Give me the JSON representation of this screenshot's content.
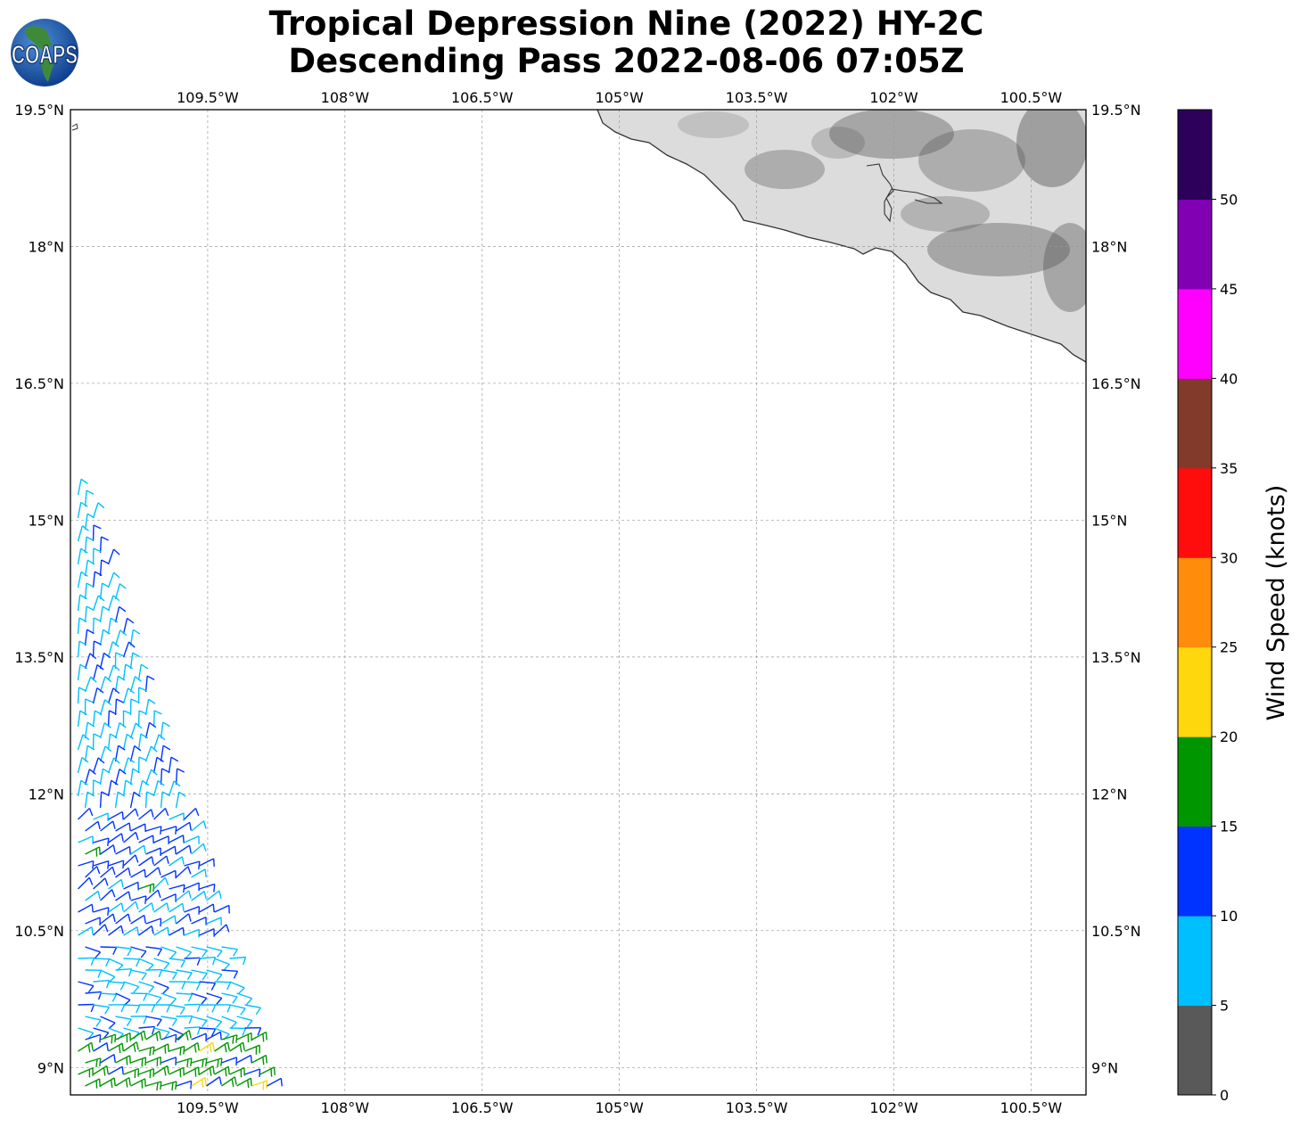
{
  "title": {
    "line1": "Tropical Depression Nine (2022) HY-2C",
    "line2": "Descending Pass 2022-08-06 07:05Z"
  },
  "logo": {
    "text": "COAPS",
    "icon": "globe-logo-icon"
  },
  "map": {
    "lon_range": [
      -111,
      -99.9
    ],
    "lat_range": [
      8.7,
      19.5
    ],
    "grid": true,
    "lon_ticks": [
      {
        "value": -109.5,
        "label": "109.5°W"
      },
      {
        "value": -108,
        "label": "108°W"
      },
      {
        "value": -106.5,
        "label": "106.5°W"
      },
      {
        "value": -105,
        "label": "105°W"
      },
      {
        "value": -103.5,
        "label": "103.5°W"
      },
      {
        "value": -102,
        "label": "102°W"
      },
      {
        "value": -100.5,
        "label": "100.5°W"
      }
    ],
    "lat_ticks": [
      {
        "value": 19.5,
        "label": "19.5°N"
      },
      {
        "value": 18,
        "label": "18°N"
      },
      {
        "value": 16.5,
        "label": "16.5°N"
      },
      {
        "value": 15,
        "label": "15°N"
      },
      {
        "value": 13.5,
        "label": "13.5°N"
      },
      {
        "value": 12,
        "label": "12°N"
      },
      {
        "value": 10.5,
        "label": "10.5°N"
      },
      {
        "value": 9,
        "label": "9°N"
      }
    ],
    "land_color": "#dcdcdc",
    "coastline_color": "#333333"
  },
  "colorbar": {
    "label": "Wind Speed (knots)",
    "ticks": [
      "0",
      "5",
      "10",
      "15",
      "20",
      "25",
      "30",
      "35",
      "40",
      "45",
      "50"
    ],
    "bins": [
      {
        "from": 0,
        "to": 5,
        "color": "#595959"
      },
      {
        "from": 5,
        "to": 10,
        "color": "#00bfff"
      },
      {
        "from": 10,
        "to": 15,
        "color": "#0033ff"
      },
      {
        "from": 15,
        "to": 20,
        "color": "#009600"
      },
      {
        "from": 20,
        "to": 25,
        "color": "#ffd70d"
      },
      {
        "from": 25,
        "to": 30,
        "color": "#ff8c0a"
      },
      {
        "from": 30,
        "to": 35,
        "color": "#ff0d0d"
      },
      {
        "from": 35,
        "to": 40,
        "color": "#823b2a"
      },
      {
        "from": 40,
        "to": 45,
        "color": "#ff00ff"
      },
      {
        "from": 45,
        "to": 50,
        "color": "#8200b4"
      },
      {
        "from": 50,
        "to": 55,
        "color": "#2d005c"
      }
    ]
  },
  "wind_swath": {
    "note_units": "knots",
    "bands": [
      {
        "lat_from": 15.3,
        "lat_to": 11.8,
        "speed": 9
      },
      {
        "lat_from": 11.8,
        "lat_to": 10.4,
        "speed": 12
      },
      {
        "lat_from": 10.4,
        "lat_to": 9.4,
        "speed": 8
      },
      {
        "lat_from": 9.4,
        "lat_to": 8.7,
        "speed": 17
      }
    ]
  }
}
